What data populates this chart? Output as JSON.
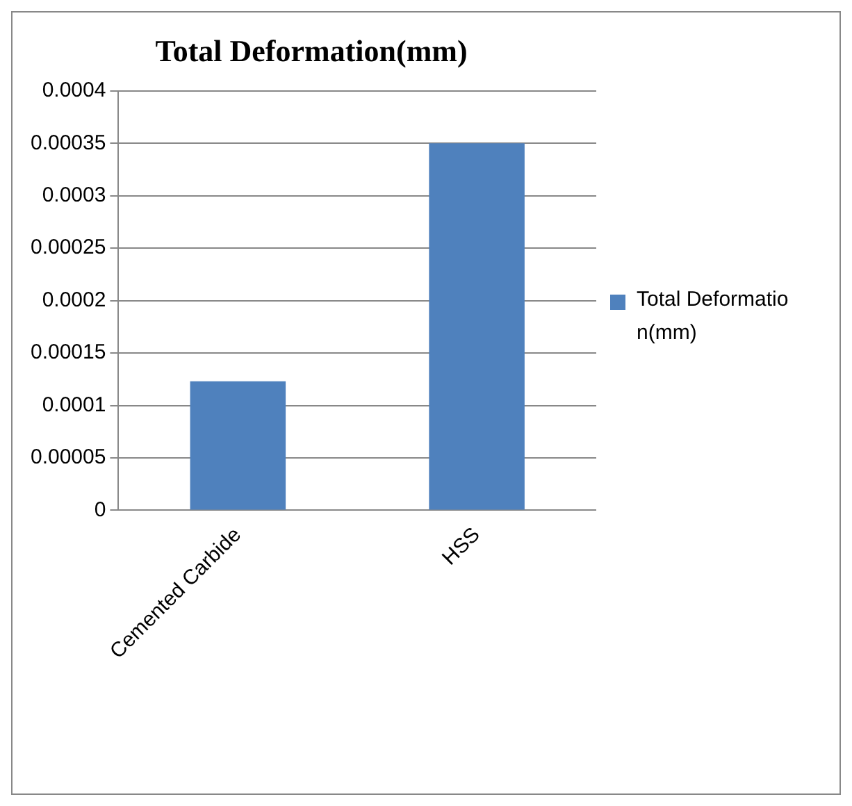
{
  "chart_data": {
    "type": "bar",
    "title": "Total Deformation(mm)",
    "categories": [
      "Cemented Carbide",
      "HSS"
    ],
    "series": [
      {
        "name": "Total Deformation(mm)",
        "color": "#4f81bd",
        "values": [
          0.000123,
          0.00035
        ]
      }
    ],
    "ylim": [
      0,
      0.0004
    ],
    "yticks": [
      0,
      {
        "value": 5e-05,
        "label": "0.00005"
      },
      0.0001,
      0.00015,
      0.0002,
      0.00025,
      0.0003,
      0.00035,
      0.0004
    ],
    "grid": "y",
    "legend": "right"
  }
}
